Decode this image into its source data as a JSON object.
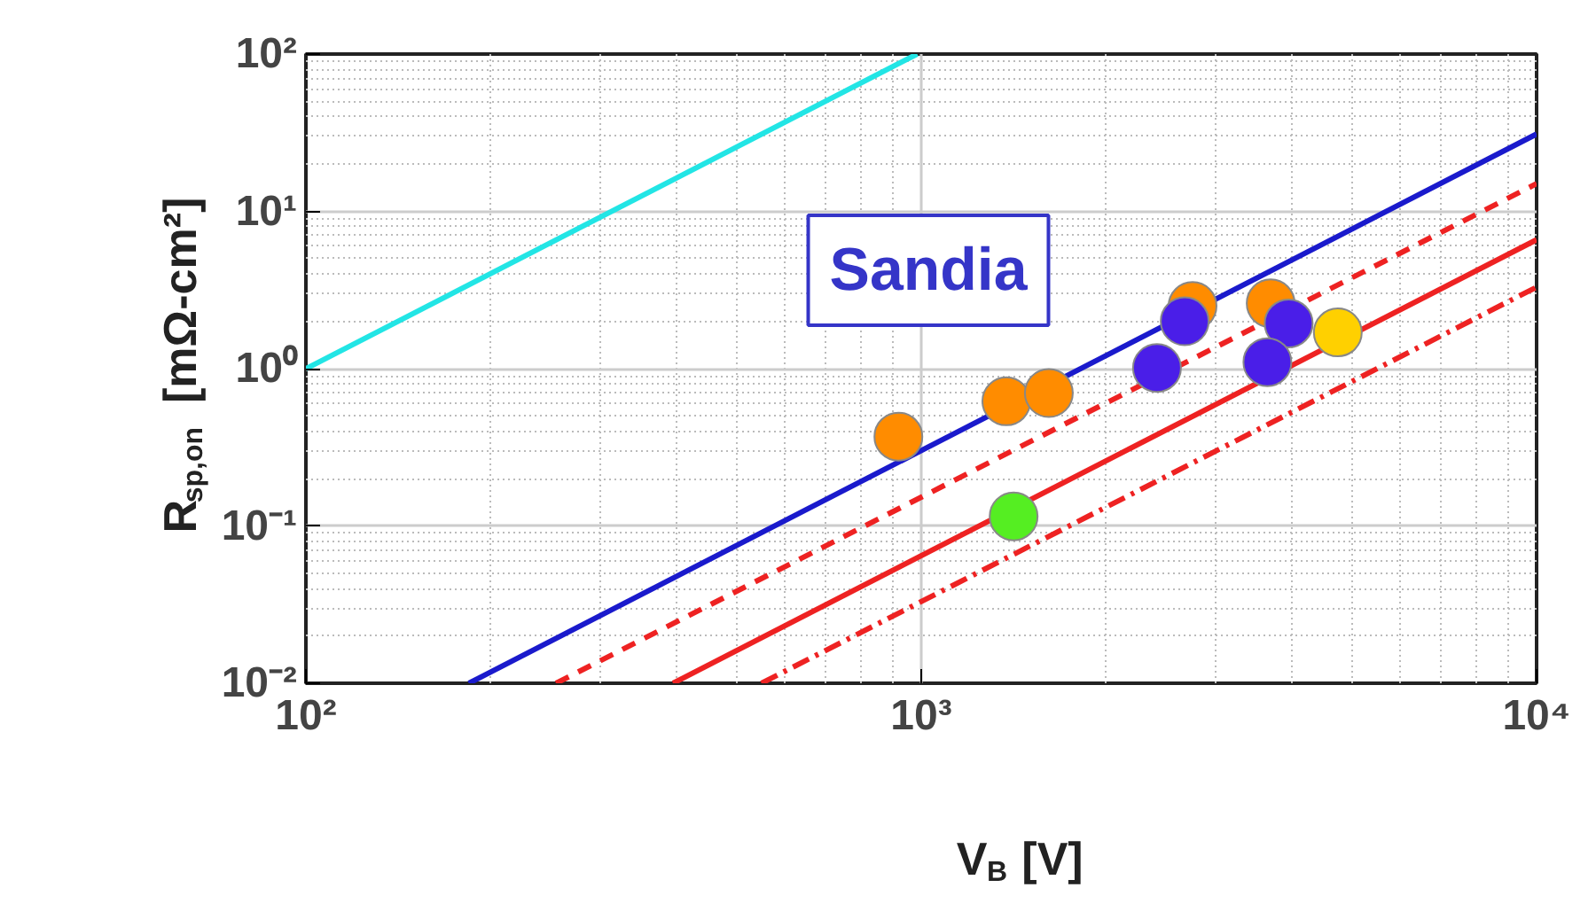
{
  "chart_data": {
    "type": "line",
    "xlabel": "V$_{B}$ [V]",
    "ylabel": "R$_{sp,on}$ [mΩ-cm²]",
    "log": "xy",
    "grid": true,
    "xlim": [
      100,
      10000
    ],
    "ylim": [
      0.01,
      100
    ],
    "xticks": [
      {
        "value": 100,
        "label": "10²"
      },
      {
        "value": 1000,
        "label": "10³"
      },
      {
        "value": 10000,
        "label": "10⁴"
      }
    ],
    "yticks": [
      {
        "value": 0.01,
        "label": "10⁻²"
      },
      {
        "value": 0.1,
        "label": "10⁻¹"
      },
      {
        "value": 1,
        "label": "10⁰"
      },
      {
        "value": 10,
        "label": "10¹"
      },
      {
        "value": 100,
        "label": "10²"
      }
    ],
    "annotations": [
      "Sandia"
    ],
    "series": [
      {
        "color": "#22e5e5",
        "line_style": "solid",
        "x": [
          100,
          985
        ],
        "values": [
          1,
          100
        ]
      },
      {
        "color": "#1a1acc",
        "line_style": "solid",
        "x": [
          184,
          10000
        ],
        "values": [
          0.01,
          31
        ]
      },
      {
        "color": "#ee2222",
        "line_style": "dashed",
        "x": [
          255,
          10000
        ],
        "values": [
          0.01,
          15
        ]
      },
      {
        "color": "#ee2222",
        "line_style": "solid",
        "x": [
          395,
          10000
        ],
        "values": [
          0.01,
          6.6
        ]
      },
      {
        "color": "#ee2222",
        "line_style": "dashdot",
        "x": [
          550,
          10000
        ],
        "values": [
          0.01,
          3.3
        ]
      },
      {
        "type": "scatter",
        "marker": "circle",
        "x": [
          918,
          1375,
          1612,
          2760,
          3697,
          2680,
          2416,
          3955,
          3652,
          4753,
          1413
        ],
        "values": [
          0.37,
          0.62,
          0.7,
          2.5,
          2.6,
          2.0,
          1.01,
          1.94,
          1.1,
          1.7,
          0.115
        ],
        "colors": [
          "#ff8c00",
          "#ff8c00",
          "#ff8c00",
          "#ff8c00",
          "#ff8c00",
          "#4a1ee8",
          "#4a1ee8",
          "#4a1ee8",
          "#4a1ee8",
          "#ffd000",
          "#55ee22"
        ]
      }
    ]
  }
}
